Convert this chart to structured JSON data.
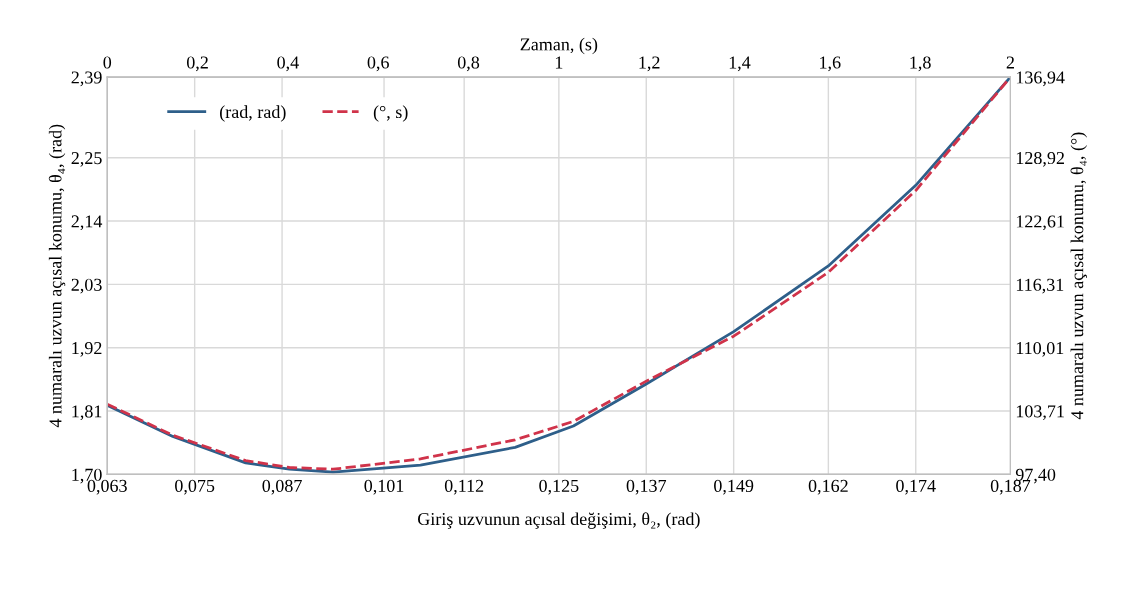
{
  "chart_data": {
    "type": "line",
    "xlabel": "Giriş uzvunun açısal değişimi, θ₂, (rad)",
    "x2label": "Zaman, (s)",
    "ylabel": "4 numaralı uzvun açısal konumu, θ₄, (rad)",
    "y2label": "4 numaralı uzvun açısal konumu, θ₄, (°)",
    "xlim": [
      0.063,
      0.187
    ],
    "xticks": [
      {
        "value": 0.063,
        "label": "0,063"
      },
      {
        "value": 0.075,
        "label": "0,075"
      },
      {
        "value": 0.087,
        "label": "0,087"
      },
      {
        "value": 0.101,
        "label": "0,101"
      },
      {
        "value": 0.112,
        "label": "0,112"
      },
      {
        "value": 0.125,
        "label": "0,125"
      },
      {
        "value": 0.137,
        "label": "0,137"
      },
      {
        "value": 0.149,
        "label": "0,149"
      },
      {
        "value": 0.162,
        "label": "0,162"
      },
      {
        "value": 0.174,
        "label": "0,174"
      },
      {
        "value": 0.187,
        "label": "0,187"
      }
    ],
    "x2lim": [
      0,
      2
    ],
    "x2ticks": [
      0,
      {
        "value": 0.2,
        "label": "0,2"
      },
      {
        "value": 0.4,
        "label": "0,4"
      },
      {
        "value": 0.6,
        "label": "0,6"
      },
      {
        "value": 0.8,
        "label": "0,8"
      },
      1,
      {
        "value": 1.2,
        "label": "1,2"
      },
      {
        "value": 1.4,
        "label": "1,4"
      },
      {
        "value": 1.6,
        "label": "1,6"
      },
      {
        "value": 1.8,
        "label": "1,8"
      },
      2
    ],
    "ylim": [
      1.7,
      2.39
    ],
    "yticks": [
      {
        "value": 1.7,
        "label": "1,70"
      },
      {
        "value": 1.81,
        "label": "1,81"
      },
      {
        "value": 1.92,
        "label": "1,92"
      },
      {
        "value": 2.03,
        "label": "2,03"
      },
      {
        "value": 2.14,
        "label": "2,14"
      },
      {
        "value": 2.25,
        "label": "2,25"
      },
      {
        "value": 2.39,
        "label": "2,39"
      }
    ],
    "y2lim": [
      97.4,
      136.94
    ],
    "y2ticks": [
      {
        "value": 97.4,
        "label": "97,40"
      },
      {
        "value": 103.71,
        "label": "103,71"
      },
      {
        "value": 110.01,
        "label": "110,01"
      },
      {
        "value": 116.31,
        "label": "116,31"
      },
      {
        "value": 122.61,
        "label": "122,61"
      },
      {
        "value": 128.92,
        "label": "128,92"
      },
      {
        "value": 136.94,
        "label": "136,94"
      }
    ],
    "grid": true,
    "legend": "top left",
    "series": [
      {
        "name": "(rad, rad)",
        "color": "#2e5f8a",
        "line_style": "solid",
        "x": [
          0.063,
          0.072,
          0.082,
          0.088,
          0.094,
          0.106,
          0.119,
          0.127,
          0.137,
          0.149,
          0.162,
          0.174,
          0.187
        ],
        "values": [
          1.82,
          1.766,
          1.72,
          1.709,
          1.704,
          1.716,
          1.747,
          1.784,
          1.857,
          1.948,
          2.062,
          2.202,
          2.39
        ]
      },
      {
        "name": "(°, s)",
        "color": "#d0334a",
        "line_style": "dashed",
        "x": [
          0.063,
          0.072,
          0.082,
          0.088,
          0.094,
          0.106,
          0.119,
          0.127,
          0.137,
          0.149,
          0.162,
          0.174,
          0.187
        ],
        "values": [
          1.822,
          1.768,
          1.724,
          1.712,
          1.709,
          1.727,
          1.76,
          1.792,
          1.862,
          1.94,
          2.051,
          2.193,
          2.39
        ]
      }
    ]
  }
}
